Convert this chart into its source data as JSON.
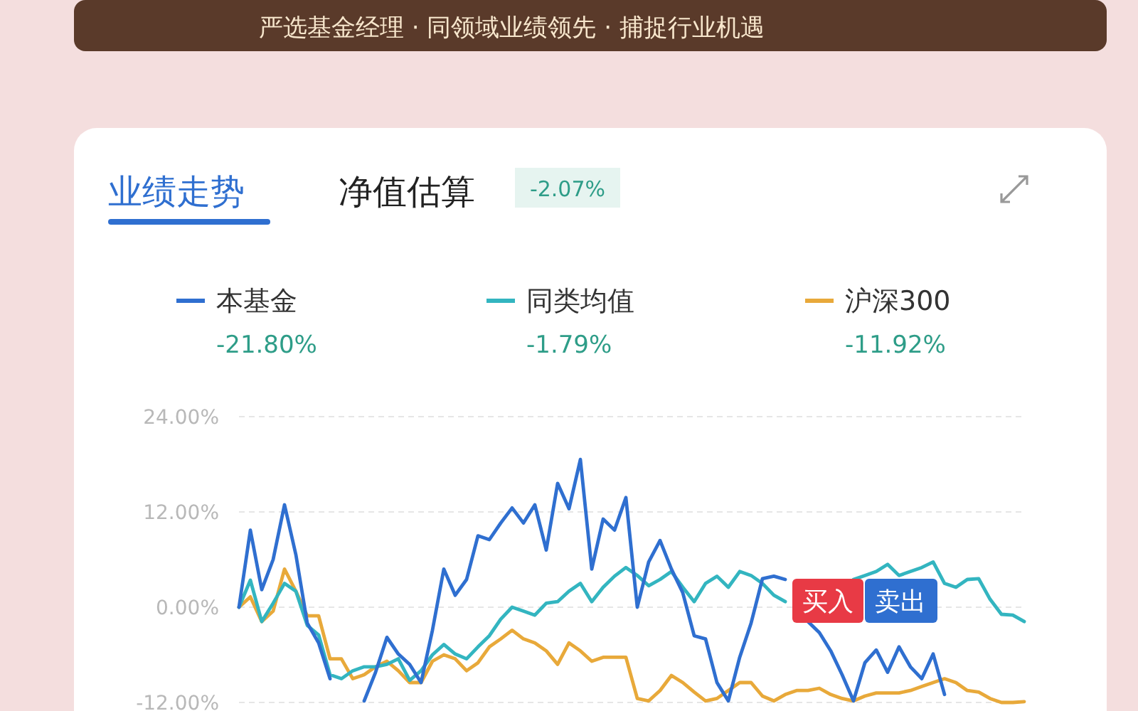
{
  "chart_data": {
    "type": "line",
    "title": "业绩走势",
    "annotations": [
      "严选基金经理 · 同领域业绩领先 · 捕捉行业机遇",
      "净值估算",
      "-2.07%",
      "-21.80%",
      "-1.79%",
      "-11.92%",
      "买入",
      "卖出"
    ],
    "categories": [
      null,
      null,
      null,
      null,
      null,
      null,
      null,
      null,
      null,
      null,
      null,
      null,
      null,
      null,
      null,
      null,
      null,
      null,
      null,
      null,
      null,
      null,
      null,
      null,
      null,
      null,
      null,
      null,
      null,
      null,
      null,
      null,
      null,
      null,
      null,
      null,
      null,
      null,
      null,
      null,
      null,
      null,
      null,
      null,
      null,
      null,
      null,
      null,
      null,
      null,
      null,
      null,
      null,
      null,
      null,
      null,
      null,
      null,
      null,
      null,
      null,
      null,
      null,
      null,
      null,
      null,
      null,
      null,
      null,
      null
    ],
    "series": [
      {
        "name": "本基金",
        "color": "#2f6fd0",
        "values": [
          0,
          9.7,
          2.2,
          6,
          12.9,
          6.6,
          -2,
          -4.5,
          -9,
          null,
          null,
          -11.8,
          -8.2,
          -3.8,
          -5.9,
          -7.2,
          -9.5,
          -2.9,
          4.8,
          1.5,
          3.5,
          9,
          8.5,
          10.6,
          12.5,
          10.6,
          12.9,
          7.2,
          15.6,
          12.4,
          18.6,
          4.8,
          11.1,
          9.7,
          13.8,
          0,
          5.7,
          8.4,
          4.8,
          1.8,
          -3.6,
          -4,
          -9.5,
          -11.8,
          -6.3,
          -2,
          3.6,
          3.9,
          3.5,
          null,
          -1.8,
          -3.2,
          -5.5,
          -8.5,
          -11.8,
          -7,
          -5.4,
          -8.2,
          -5,
          -7.5,
          -9,
          -5.9,
          -11,
          null,
          null,
          null,
          null,
          null,
          null,
          null
        ]
      },
      {
        "name": "同类均值",
        "color": "#33b5c0",
        "values": [
          0,
          3.4,
          -1.8,
          0.5,
          3,
          2,
          -2.3,
          -3.5,
          -8.5,
          -9,
          -8,
          -7.5,
          -7.5,
          -7.2,
          -6.5,
          -9.2,
          -8,
          -6,
          -4.7,
          -5.9,
          -6.5,
          -5,
          -3.6,
          -1.5,
          0,
          -0.5,
          -1,
          0.5,
          0.7,
          2,
          3,
          0.7,
          2.5,
          3.9,
          5,
          4,
          2.7,
          3.5,
          4.5,
          2.5,
          0.7,
          3,
          3.9,
          2.5,
          4.5,
          4,
          3,
          1.5,
          0.7,
          null,
          null,
          null,
          null,
          null,
          3.5,
          4,
          4.5,
          5.4,
          4,
          4.5,
          5,
          5.7,
          3,
          2.5,
          3.5,
          3.6,
          1,
          -0.9,
          -1,
          -1.8
        ]
      },
      {
        "name": "沪深300",
        "color": "#e8a93a",
        "values": [
          0,
          1.3,
          -1.8,
          -0.5,
          4.8,
          2,
          -1.1,
          -1.1,
          -6.5,
          -6.5,
          -9,
          -8.5,
          -7.5,
          -6.8,
          -8,
          -9.5,
          -9.5,
          -6.8,
          -6,
          -6.5,
          -8,
          -7,
          -5,
          -4,
          -2.9,
          -4,
          -4.5,
          -5.5,
          -7.2,
          -4.5,
          -5.5,
          -6.8,
          -6.3,
          -6.3,
          -6.3,
          -11.5,
          -11.8,
          -10.5,
          -8.6,
          -9.5,
          -10.7,
          -11.8,
          -11.5,
          -10.5,
          -9.5,
          -9.5,
          -11.2,
          -11.8,
          -11,
          -10.5,
          -10.5,
          -10.2,
          -11,
          -11.5,
          -11.8,
          -11.2,
          -10.8,
          -10.8,
          -10.8,
          -10.5,
          -10,
          -9.5,
          -9,
          -9.5,
          -10.5,
          -10.7,
          -11.5,
          -12,
          -12,
          -11.9
        ]
      }
    ],
    "ylim": [
      -12,
      24
    ],
    "yticks": [
      {
        "value": 24,
        "label": "24.00%"
      },
      {
        "value": 12,
        "label": "12.00%"
      },
      {
        "value": 0,
        "label": "0.00%"
      },
      {
        "value": -12,
        "label": "-12.00%"
      }
    ],
    "tick_labels": "y",
    "grid": "y",
    "legend": "top",
    "marker": "none",
    "line_style": "solid"
  }
}
